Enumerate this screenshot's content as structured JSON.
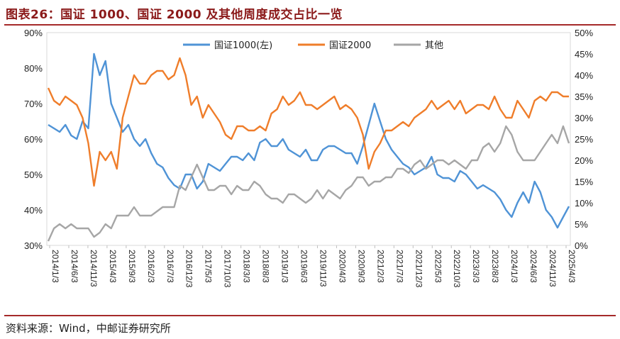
{
  "title": "图表26：国证 1000、国证 2000 及其他周度成交占比一览",
  "source": "资料来源：Wind，中邮证券研究所",
  "chart_data": {
    "type": "line",
    "left_axis": {
      "ticks": [
        "30%",
        "40%",
        "50%",
        "60%",
        "70%",
        "80%",
        "90%"
      ],
      "min": 30,
      "max": 90
    },
    "right_axis": {
      "ticks": [
        "0%",
        "5%",
        "10%",
        "15%",
        "20%",
        "25%",
        "30%",
        "35%",
        "40%",
        "45%",
        "50%"
      ],
      "min": 0,
      "max": 50
    },
    "x_labels": [
      "2014/1/3",
      "2014/6/3",
      "2014/11/3",
      "2015/4/3",
      "2015/9/3",
      "2016/2/3",
      "2016/7/3",
      "2016/12/3",
      "2017/5/3",
      "2017/10/3",
      "2018/3/3",
      "2018/8/3",
      "2019/1/3",
      "2019/6/3",
      "2019/11/3",
      "2020/4/3",
      "2020/9/3",
      "2021/2/3",
      "2021/7/3",
      "2021/12/3",
      "2022/5/3",
      "2022/10/3",
      "2023/3/3",
      "2023/8/3",
      "2024/1/3",
      "2024/6/3",
      "2024/11/3",
      "2025/4/3"
    ],
    "series": [
      {
        "name": "国证1000(左)",
        "axis": "left",
        "color": "#4f93d6",
        "values": [
          64,
          63,
          62,
          64,
          61,
          60,
          65,
          63,
          84,
          78,
          82,
          70,
          66,
          62,
          64,
          60,
          58,
          60,
          56,
          53,
          52,
          49,
          47,
          46,
          50,
          50,
          46,
          48,
          53,
          52,
          51,
          53,
          55,
          55,
          54,
          56,
          54,
          59,
          60,
          58,
          58,
          60,
          57,
          56,
          55,
          57,
          54,
          54,
          57,
          58,
          58,
          57,
          56,
          56,
          53,
          58,
          64,
          70,
          65,
          60,
          57,
          55,
          53,
          52,
          50,
          51,
          52,
          55,
          50,
          49,
          49,
          48,
          51,
          50,
          48,
          46,
          47,
          46,
          45,
          43,
          40,
          38,
          42,
          45,
          42,
          48,
          45,
          40,
          38,
          35,
          38,
          41
        ]
      },
      {
        "name": "国证2000",
        "axis": "right",
        "color": "#ef7d2a",
        "values": [
          37,
          34,
          33,
          35,
          34,
          33,
          30,
          24,
          14,
          22,
          20,
          22,
          18,
          30,
          35,
          40,
          38,
          38,
          40,
          41,
          41,
          39,
          40,
          44,
          40,
          33,
          35,
          30,
          33,
          31,
          29,
          26,
          25,
          28,
          28,
          27,
          27,
          28,
          27,
          31,
          32,
          35,
          33,
          34,
          36,
          33,
          33,
          32,
          33,
          34,
          35,
          32,
          33,
          32,
          30,
          26,
          18,
          22,
          24,
          27,
          27,
          28,
          29,
          28,
          30,
          31,
          32,
          34,
          32,
          33,
          34,
          32,
          34,
          31,
          32,
          33,
          33,
          32,
          35,
          32,
          30,
          30,
          34,
          32,
          30,
          34,
          35,
          34,
          36,
          36,
          35,
          35
        ]
      },
      {
        "name": "其他",
        "axis": "right",
        "color": "#a6a6a6",
        "values": [
          1,
          4,
          5,
          4,
          5,
          4,
          4,
          4,
          2,
          3,
          5,
          4,
          7,
          7,
          7,
          9,
          7,
          7,
          7,
          8,
          9,
          9,
          9,
          14,
          13,
          16,
          19,
          16,
          13,
          13,
          14,
          14,
          12,
          14,
          13,
          13,
          15,
          14,
          12,
          11,
          11,
          10,
          12,
          12,
          11,
          10,
          11,
          13,
          11,
          13,
          12,
          11,
          13,
          14,
          16,
          16,
          14,
          15,
          15,
          16,
          16,
          18,
          18,
          17,
          19,
          20,
          18,
          19,
          20,
          20,
          19,
          20,
          19,
          18,
          20,
          20,
          23,
          24,
          22,
          24,
          28,
          26,
          22,
          20,
          20,
          20,
          22,
          24,
          26,
          24,
          28,
          24
        ]
      }
    ]
  }
}
